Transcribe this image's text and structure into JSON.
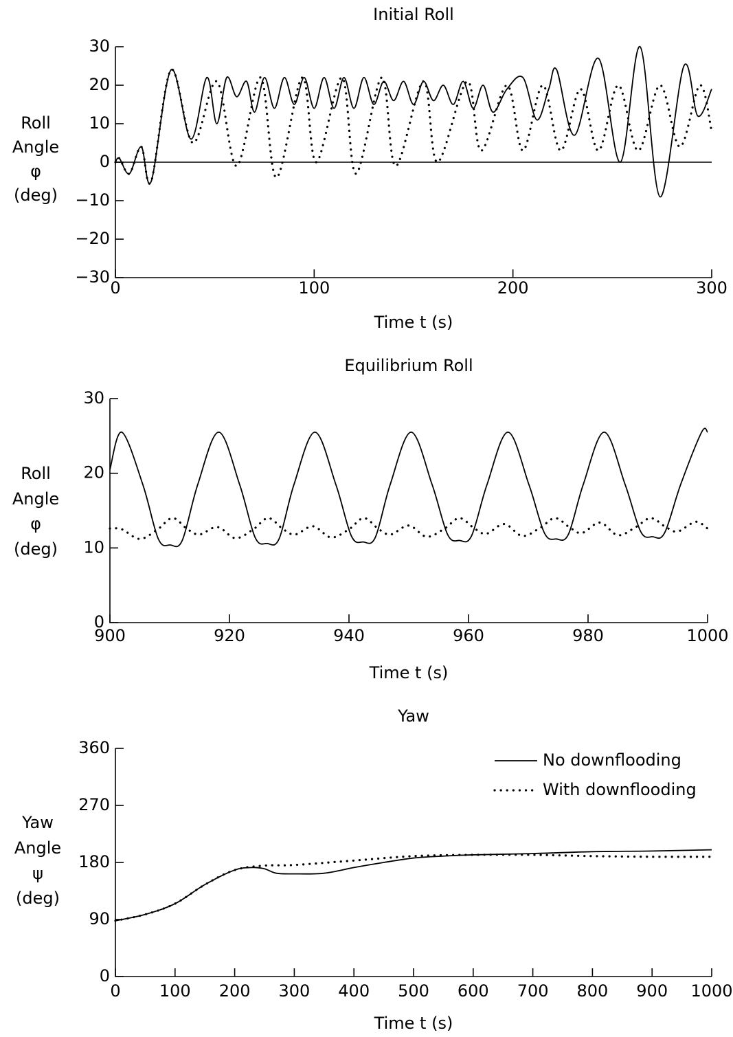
{
  "chart_data": [
    {
      "type": "line",
      "title": "Initial Roll",
      "xlabel": "Time t (s)",
      "ylabel": [
        "Roll",
        "Angle",
        "φ",
        "(deg)"
      ],
      "xlim": [
        0,
        300
      ],
      "xticks": [
        0,
        100,
        200,
        300
      ],
      "ylim": [
        -30,
        30
      ],
      "yticks": [
        {
          "value": -30,
          "label": "−30"
        },
        {
          "value": -20,
          "label": "−20"
        },
        {
          "value": -10,
          "label": "−10"
        },
        0,
        10,
        20,
        30
      ],
      "hline": 0,
      "series": [
        {
          "style": "solid",
          "color": "#000000",
          "x": [
            0,
            2,
            7,
            13,
            18,
            28,
            38,
            46,
            51,
            56,
            61,
            66,
            70,
            75,
            80,
            85,
            90,
            95,
            100,
            105,
            110,
            115,
            120,
            125,
            130,
            135,
            140,
            145,
            150,
            155,
            160,
            165,
            170,
            175,
            180,
            185,
            190,
            197,
            205,
            212,
            218,
            222,
            231,
            243,
            254,
            264,
            274,
            286,
            293,
            300
          ],
          "values": [
            0,
            1,
            -3,
            4,
            -5,
            24,
            6,
            22,
            10,
            22,
            17,
            21,
            13,
            22,
            14,
            22,
            15,
            22,
            14,
            22,
            14,
            22,
            14,
            22,
            15,
            21,
            16,
            21,
            15,
            21,
            16,
            20,
            15,
            21,
            14,
            20,
            13,
            19,
            22,
            11,
            19,
            24,
            7,
            27,
            0,
            30,
            -9,
            25,
            12,
            19
          ]
        },
        {
          "style": "dotted",
          "color": "#000000",
          "x": [
            0,
            2,
            7,
            13,
            18,
            28,
            39,
            51,
            61,
            73,
            81,
            94,
            101,
            114,
            121,
            134,
            141,
            155,
            162,
            177,
            184,
            197,
            205,
            215,
            224,
            234,
            243,
            253,
            263,
            274,
            284,
            294,
            300
          ],
          "values": [
            0,
            1,
            -3,
            4,
            -5,
            24,
            5,
            21,
            -1,
            22,
            -4,
            22,
            0,
            22,
            -3,
            22,
            -1,
            21,
            0,
            21,
            3,
            20,
            3,
            20,
            3,
            19,
            3,
            20,
            3,
            20,
            4,
            20,
            8
          ]
        }
      ]
    },
    {
      "type": "line",
      "title": "Equilibrium Roll",
      "xlabel": "Time t (s)",
      "ylabel": [
        "Roll",
        "Angle",
        "φ",
        "(deg)"
      ],
      "xlim": [
        900,
        1000
      ],
      "xticks": [
        900,
        920,
        940,
        960,
        980,
        1000
      ],
      "ylim": [
        0,
        30
      ],
      "yticks": [
        0,
        10,
        20,
        30
      ],
      "series": [
        {
          "style": "solid",
          "color": "#000000",
          "x": [
            900,
            902,
            905.5,
            908.1,
            910.1,
            912.1,
            914.7,
            918.2,
            921.7,
            924.3,
            926.3,
            928.3,
            930.8,
            934.3,
            937.8,
            940.4,
            942.4,
            944.4,
            946.9,
            950.4,
            953.9,
            956.5,
            958.5,
            960.5,
            963.1,
            966.6,
            970.1,
            972.7,
            974.7,
            976.7,
            979.2,
            982.7,
            986.2,
            988.8,
            990.8,
            992.8,
            995.5,
            999,
            1000
          ],
          "values": [
            20.5,
            25.5,
            18.5,
            11.2,
            10.4,
            11.0,
            18.5,
            25.5,
            18.5,
            11.4,
            10.6,
            11.2,
            18.5,
            25.5,
            18.5,
            11.6,
            10.8,
            11.4,
            18.5,
            25.5,
            18.5,
            11.8,
            11.0,
            11.6,
            18.5,
            25.5,
            18.5,
            12.0,
            11.2,
            11.8,
            18.5,
            25.5,
            18.5,
            12.2,
            11.5,
            12.0,
            18.5,
            25.5,
            25.5
          ]
        },
        {
          "style": "dotted",
          "color": "#000000",
          "x": [
            900,
            902,
            905,
            908,
            910.5,
            913,
            915,
            918,
            921,
            924,
            926.5,
            929,
            931,
            934,
            937,
            940,
            942.5,
            945,
            947,
            950,
            953,
            956,
            958.5,
            961,
            963,
            966,
            969,
            972,
            974.5,
            977,
            979,
            982,
            985,
            988,
            990.5,
            993,
            995,
            998,
            1000
          ],
          "values": [
            12.6,
            12.5,
            11.2,
            12.5,
            14.0,
            12.5,
            11.8,
            12.8,
            11.3,
            12.5,
            14.0,
            12.5,
            11.8,
            12.9,
            11.4,
            12.5,
            14.0,
            12.5,
            11.8,
            13.0,
            11.5,
            12.6,
            14.0,
            12.6,
            11.9,
            13.2,
            11.6,
            12.7,
            14.0,
            12.7,
            12.0,
            13.4,
            11.7,
            12.8,
            14.0,
            12.8,
            12.2,
            13.5,
            12.6
          ]
        }
      ]
    },
    {
      "type": "line",
      "title": "Yaw",
      "xlabel": "Time t (s)",
      "ylabel": [
        "Yaw",
        "Angle",
        "ψ",
        "(deg)"
      ],
      "xlim": [
        0,
        1000
      ],
      "xticks": [
        0,
        100,
        200,
        300,
        400,
        500,
        600,
        700,
        800,
        900,
        1000
      ],
      "ylim": [
        0,
        360
      ],
      "yticks": [
        0,
        90,
        180,
        270,
        360
      ],
      "legend": "upper right",
      "series": [
        {
          "name": "No downflooding",
          "style": "solid",
          "color": "#000000",
          "x": [
            0,
            50,
            100,
            150,
            200,
            230,
            250,
            270,
            300,
            350,
            400,
            450,
            500,
            550,
            600,
            700,
            800,
            900,
            1000
          ],
          "values": [
            88,
            98,
            115,
            145,
            168,
            172,
            170,
            163,
            162,
            163,
            172,
            180,
            187,
            190,
            192,
            194,
            197,
            198,
            200
          ]
        },
        {
          "name": "With downflooding",
          "style": "dotted",
          "color": "#000000",
          "x": [
            0,
            50,
            100,
            150,
            200,
            250,
            300,
            400,
            500,
            600,
            700,
            800,
            900,
            1000
          ],
          "values": [
            88,
            98,
            115,
            145,
            168,
            175,
            176,
            183,
            190,
            192,
            192,
            190,
            189,
            189
          ]
        }
      ]
    }
  ]
}
